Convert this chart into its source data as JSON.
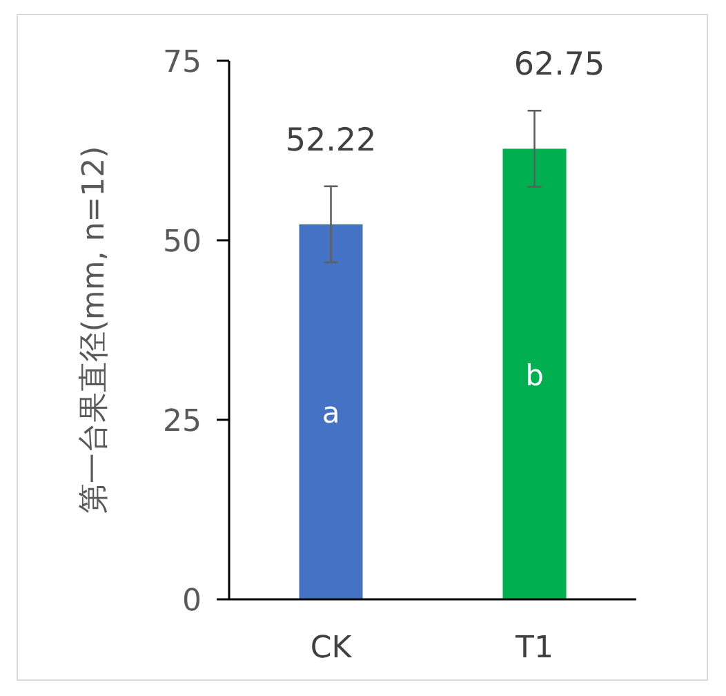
{
  "chart_data": {
    "type": "bar",
    "ylabel": "第一台果直径(mm, n=12)",
    "categories": [
      "CK",
      "T1"
    ],
    "values": [
      52.22,
      62.75
    ],
    "colors": [
      "#4472c4",
      "#00b050"
    ],
    "errors": [
      5.3,
      5.3
    ],
    "data_labels": true,
    "ylim": [
      0,
      75
    ],
    "yticks": [
      0,
      25,
      50,
      75
    ],
    "grid": false,
    "annotations": [
      "a",
      "b"
    ]
  }
}
